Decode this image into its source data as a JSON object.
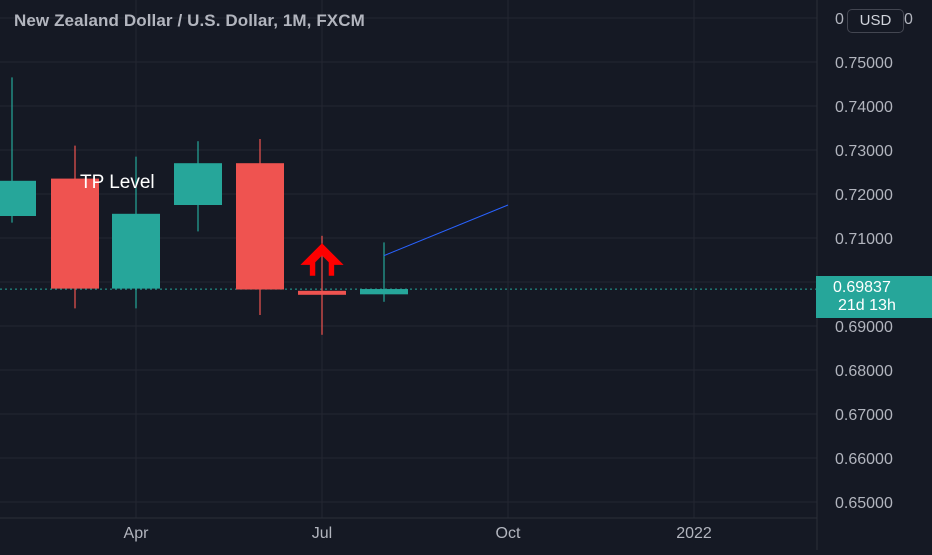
{
  "header": {
    "title": "New Zealand Dollar / U.S. Dollar, 1M, FXCM",
    "currency": "USD"
  },
  "price_axis": {
    "ticks": [
      "0.75000",
      "0.74000",
      "0.73000",
      "0.72000",
      "0.71000",
      "0.70000",
      "0.69000",
      "0.68000",
      "0.67000",
      "0.66000",
      "0.65000"
    ],
    "top_clipped": "0",
    "top_clipped_right": "0"
  },
  "time_axis": {
    "labels": [
      "Apr",
      "Jul",
      "Oct",
      "2022"
    ]
  },
  "last_price": {
    "value": "0.69837",
    "countdown": "21d 13h"
  },
  "annotations": {
    "tp_label": "TP Level"
  },
  "colors": {
    "background": "#151924",
    "bull": "#26a69a",
    "bear": "#ef5350",
    "arrow": "#ff0000",
    "trendline": "#2962ff"
  },
  "chart_data": {
    "type": "candlestick",
    "series": [
      {
        "name": "NZDUSD",
        "candles": [
          {
            "open": 0.715,
            "high": 0.7465,
            "low": 0.7135,
            "close": 0.723
          },
          {
            "open": 0.7235,
            "high": 0.731,
            "low": 0.694,
            "close": 0.6985
          },
          {
            "open": 0.6985,
            "high": 0.7285,
            "low": 0.694,
            "close": 0.7155
          },
          {
            "open": 0.7175,
            "high": 0.732,
            "low": 0.7115,
            "close": 0.727
          },
          {
            "open": 0.727,
            "high": 0.7325,
            "low": 0.6925,
            "close": 0.6983
          },
          {
            "open": 0.698,
            "high": 0.7105,
            "low": 0.688,
            "close": 0.6972
          },
          {
            "open": 0.6972,
            "high": 0.709,
            "low": 0.6955,
            "close": 0.6984
          }
        ]
      }
    ],
    "x_labels": [
      "Apr",
      "Jul",
      "Oct",
      "2022"
    ],
    "ylim": [
      0.645,
      0.76
    ],
    "y_scale": "linear",
    "grid": true,
    "last_price_line": 0.69837,
    "trendline": {
      "from": {
        "candle": 6,
        "price": 0.706
      },
      "to": {
        "month": "Oct",
        "price": 0.7175
      }
    },
    "marker": {
      "shape": "up-arrow",
      "candle": 5
    }
  }
}
